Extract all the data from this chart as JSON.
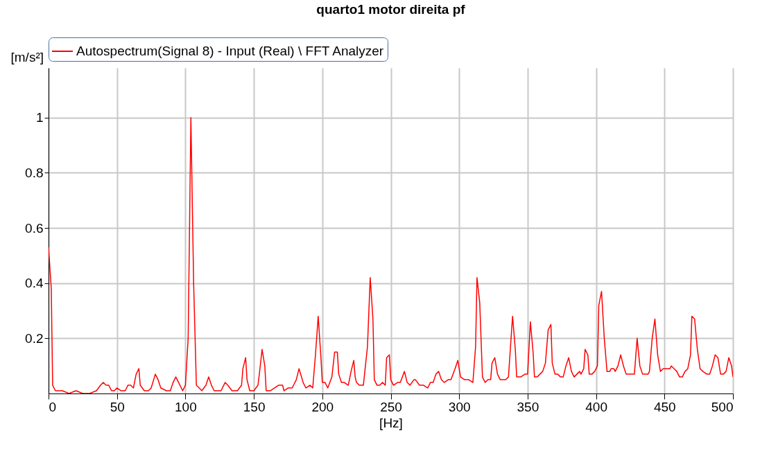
{
  "chart_data": {
    "type": "line",
    "title": "quarto1 motor direita pf",
    "xlabel": "[Hz]",
    "ylabel": "[m/s²]",
    "x": [
      0,
      2,
      3,
      5,
      10,
      15,
      20,
      25,
      30,
      35,
      38,
      40,
      42,
      44,
      46,
      48,
      50,
      53,
      56,
      58,
      60,
      62,
      64,
      66,
      67,
      70,
      73,
      75,
      78,
      80,
      82,
      86,
      89,
      91,
      93,
      95,
      98,
      100,
      102,
      104,
      106,
      108,
      112,
      115,
      117,
      119,
      121,
      124,
      126,
      129,
      131,
      134,
      138,
      141,
      142,
      144,
      145,
      147,
      150,
      153,
      154,
      156,
      158,
      159,
      162,
      165,
      168,
      171,
      172,
      175,
      178,
      181,
      183,
      186,
      188,
      191,
      193,
      195,
      197,
      199,
      200,
      202,
      204,
      207,
      209,
      211,
      212,
      214,
      216,
      219,
      221,
      223,
      224,
      225,
      227,
      230,
      233,
      235,
      237,
      238,
      240,
      242,
      244,
      246,
      247,
      249,
      250,
      252,
      255,
      257,
      260,
      262,
      264,
      267,
      268,
      271,
      274,
      277,
      279,
      281,
      283,
      285,
      287,
      289,
      292,
      294,
      297,
      299,
      301,
      304,
      307,
      310,
      312,
      313,
      315,
      317,
      319,
      321,
      323,
      324,
      326,
      328,
      330,
      334,
      336,
      339,
      341,
      342,
      345,
      348,
      350,
      352,
      354,
      355,
      357,
      359,
      361,
      363,
      365,
      367,
      368,
      370,
      372,
      374,
      376,
      378,
      380,
      382,
      384,
      386,
      388,
      389,
      391,
      392,
      394,
      395,
      397,
      399,
      401,
      402,
      404,
      406,
      408,
      410,
      411,
      413,
      414,
      416,
      418,
      420,
      422,
      424,
      426,
      428,
      430,
      432,
      434,
      436,
      438,
      439,
      441,
      443,
      445,
      447,
      449,
      452,
      454,
      455,
      457,
      459,
      461,
      463,
      465,
      467,
      469,
      470,
      472,
      474,
      476,
      478,
      481,
      483,
      485,
      487,
      489,
      491,
      493,
      495,
      497,
      499,
      500
    ],
    "series": [
      {
        "name": "Autospectrum(Signal 8) - Input (Real) \\ FFT Analyzer",
        "color": "#ff0000",
        "values": [
          0.53,
          0.38,
          0.03,
          0.01,
          0.01,
          0.0,
          0.01,
          0.0,
          0.0,
          0.01,
          0.03,
          0.04,
          0.03,
          0.03,
          0.01,
          0.01,
          0.02,
          0.01,
          0.01,
          0.03,
          0.03,
          0.02,
          0.07,
          0.09,
          0.03,
          0.01,
          0.01,
          0.02,
          0.07,
          0.05,
          0.02,
          0.01,
          0.01,
          0.04,
          0.06,
          0.04,
          0.01,
          0.03,
          0.2,
          1.0,
          0.4,
          0.03,
          0.01,
          0.03,
          0.06,
          0.03,
          0.01,
          0.01,
          0.01,
          0.04,
          0.03,
          0.01,
          0.01,
          0.03,
          0.09,
          0.13,
          0.05,
          0.01,
          0.01,
          0.03,
          0.07,
          0.16,
          0.1,
          0.01,
          0.01,
          0.02,
          0.03,
          0.03,
          0.01,
          0.02,
          0.02,
          0.05,
          0.09,
          0.04,
          0.02,
          0.03,
          0.02,
          0.14,
          0.28,
          0.13,
          0.04,
          0.04,
          0.02,
          0.06,
          0.15,
          0.15,
          0.07,
          0.04,
          0.04,
          0.03,
          0.08,
          0.12,
          0.06,
          0.04,
          0.03,
          0.03,
          0.17,
          0.42,
          0.27,
          0.05,
          0.03,
          0.03,
          0.04,
          0.03,
          0.13,
          0.14,
          0.05,
          0.03,
          0.04,
          0.04,
          0.08,
          0.04,
          0.03,
          0.05,
          0.05,
          0.03,
          0.03,
          0.02,
          0.04,
          0.04,
          0.07,
          0.08,
          0.05,
          0.04,
          0.05,
          0.05,
          0.09,
          0.12,
          0.06,
          0.05,
          0.05,
          0.04,
          0.17,
          0.42,
          0.33,
          0.06,
          0.04,
          0.05,
          0.05,
          0.11,
          0.13,
          0.07,
          0.05,
          0.05,
          0.06,
          0.28,
          0.16,
          0.06,
          0.06,
          0.07,
          0.07,
          0.26,
          0.15,
          0.06,
          0.06,
          0.07,
          0.08,
          0.11,
          0.23,
          0.25,
          0.11,
          0.07,
          0.07,
          0.06,
          0.06,
          0.1,
          0.13,
          0.08,
          0.06,
          0.07,
          0.08,
          0.07,
          0.09,
          0.16,
          0.14,
          0.07,
          0.07,
          0.08,
          0.1,
          0.32,
          0.37,
          0.2,
          0.08,
          0.08,
          0.09,
          0.09,
          0.08,
          0.1,
          0.14,
          0.1,
          0.07,
          0.07,
          0.07,
          0.07,
          0.2,
          0.1,
          0.07,
          0.07,
          0.07,
          0.08,
          0.2,
          0.27,
          0.14,
          0.08,
          0.09,
          0.09,
          0.09,
          0.1,
          0.09,
          0.08,
          0.06,
          0.06,
          0.08,
          0.09,
          0.14,
          0.28,
          0.27,
          0.16,
          0.09,
          0.08,
          0.07,
          0.07,
          0.1,
          0.14,
          0.13,
          0.07,
          0.07,
          0.08,
          0.13,
          0.1,
          0.06
        ]
      }
    ],
    "xlim": [
      0,
      500
    ],
    "xticks": [
      0,
      50,
      100,
      150,
      200,
      250,
      300,
      350,
      400,
      450,
      500
    ],
    "ylim": [
      0,
      1.18
    ],
    "yticks": [
      0.2,
      0.4,
      0.6,
      0.8,
      1
    ],
    "grid": true,
    "legend": "top",
    "marker": "none",
    "line_style": "solid"
  }
}
